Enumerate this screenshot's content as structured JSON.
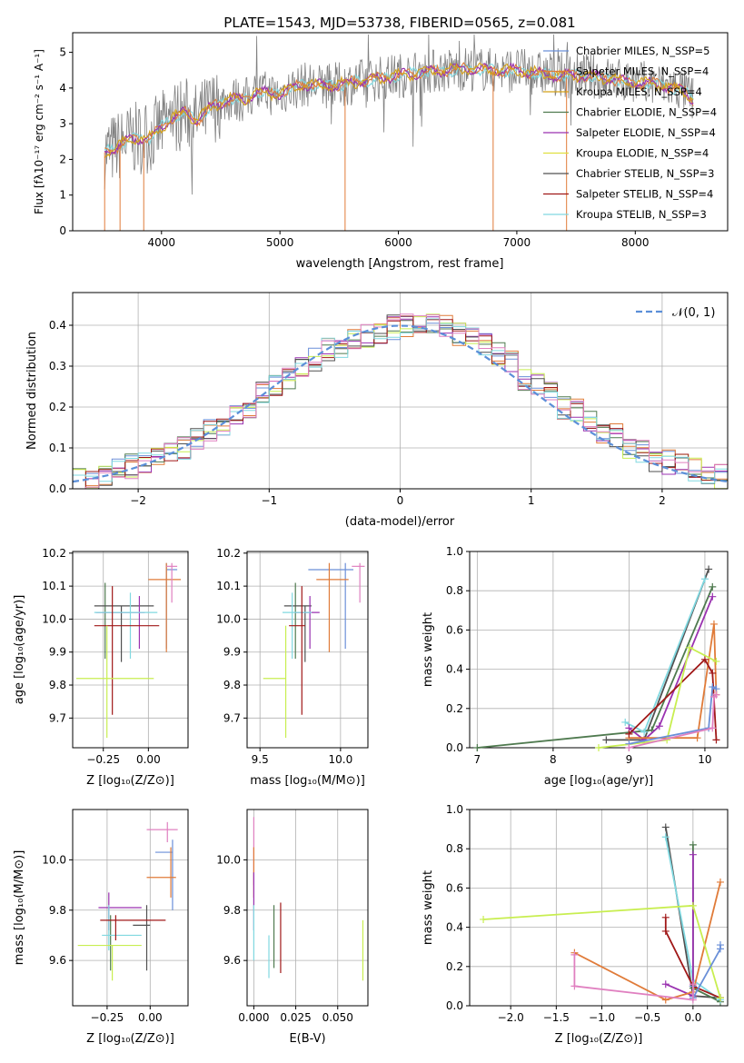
{
  "figure": {
    "title": "PLATE=1543, MJD=53738, FIBERID=0565, z=0.081"
  },
  "colors": {
    "Chabrier MILES": "#6a8fd8",
    "Salpeter MILES": "#e07b39",
    "Kroupa MILES": "#d4a017",
    "Chabrier ELODIE": "#4f7a4f",
    "Salpeter ELODIE": "#9a32b0",
    "Kroupa ELODIE": "#e0e040",
    "Chabrier STELIB": "#505050",
    "Salpeter STELIB": "#a01818",
    "Kroupa STELIB": "#80d8e0",
    "Kroupa ELODIE-bright": "#c8ee50",
    "pink": "#e080c0",
    "normal": "#5b8fd8"
  },
  "chart_data": [
    {
      "type": "line",
      "xlabel": "wavelength [Angstrom, rest frame]",
      "ylabel": "Flux [fλ10⁻¹⁷ erg cm⁻² s⁻¹ A⁻¹]",
      "xlim": [
        3250,
        8780
      ],
      "ylim": [
        0,
        5.55
      ],
      "xticks": [
        "4000",
        "5000",
        "6000",
        "7000",
        "8000"
      ],
      "yticks": [
        "0",
        "1",
        "2",
        "3",
        "4",
        "5"
      ],
      "legend": [
        "Chabrier MILES, N_SSP=5",
        "Salpeter MILES, N_SSP=4",
        "Kroupa MILES, N_SSP=4",
        "Chabrier ELODIE, N_SSP=4",
        "Salpeter ELODIE, N_SSP=4",
        "Kroupa ELODIE, N_SSP=4",
        "Chabrier STELIB, N_SSP=3",
        "Salpeter STELIB, N_SSP=4",
        "Kroupa STELIB, N_SSP=3"
      ],
      "legend_placement": "right",
      "continuum": {
        "x": [
          3520,
          3600,
          3700,
          3800,
          3900,
          4000,
          4100,
          4200,
          4300,
          4400,
          4500,
          4600,
          4700,
          4800,
          4900,
          5000,
          5200,
          5400,
          5600,
          5800,
          6000,
          6200,
          6400,
          6600,
          6800,
          7000,
          7200,
          7400,
          7600,
          7800,
          8000,
          8200,
          8400,
          8500
        ],
        "y": [
          2.2,
          2.3,
          2.5,
          2.6,
          2.6,
          2.9,
          3.2,
          3.3,
          3.1,
          3.4,
          3.6,
          3.7,
          3.65,
          3.9,
          3.85,
          3.85,
          4.1,
          4.05,
          4.15,
          4.25,
          4.35,
          4.45,
          4.5,
          4.55,
          4.5,
          4.5,
          4.4,
          4.35,
          4.35,
          4.25,
          4.15,
          4.1,
          3.95,
          3.65
        ]
      }
    },
    {
      "type": "bar",
      "xlabel": "(data-model)/error",
      "ylabel": "Normed distribution",
      "xlim": [
        -2.5,
        2.5
      ],
      "ylim": [
        0,
        0.48
      ],
      "xticks": [
        "−2",
        "−1",
        "0",
        "1",
        "2"
      ],
      "yticks": [
        "0.0",
        "0.1",
        "0.2",
        "0.3",
        "0.4"
      ],
      "legend": [
        "𝒩(0, 1)"
      ],
      "legend_placement": "top-right",
      "bin_width": 0.1,
      "histogram_profile": [
        0.02,
        0.025,
        0.03,
        0.035,
        0.045,
        0.05,
        0.055,
        0.06,
        0.07,
        0.085,
        0.09,
        0.1,
        0.11,
        0.125,
        0.14,
        0.15,
        0.17,
        0.185,
        0.2,
        0.215,
        0.235,
        0.25,
        0.27,
        0.28,
        0.3,
        0.315,
        0.33,
        0.34,
        0.35,
        0.36,
        0.37,
        0.375,
        0.38,
        0.39,
        0.395,
        0.4,
        0.41,
        0.41,
        0.405,
        0.4,
        0.39,
        0.38,
        0.37,
        0.355,
        0.34,
        0.33,
        0.31,
        0.29,
        0.27,
        0.26,
        0.24,
        0.22,
        0.2,
        0.19,
        0.17,
        0.16,
        0.14,
        0.13,
        0.11,
        0.1,
        0.09,
        0.08,
        0.07,
        0.065,
        0.055,
        0.05,
        0.045,
        0.04,
        0.035,
        0.03
      ]
    },
    {
      "type": "scatter",
      "xlabel": "Z [log₁₀(Z/Z⊙)]",
      "ylabel": "age  [log₁₀(age/yr)]",
      "xlim": [
        -0.42,
        0.22
      ],
      "ylim": [
        9.61,
        10.205
      ],
      "xticks": [
        "−0.25",
        "0.00"
      ],
      "yticks": [
        "9.7",
        "9.8",
        "9.9",
        "10.0",
        "10.1",
        "10.2"
      ]
    },
    {
      "type": "scatter",
      "xlabel": "mass [log₁₀(M/M⊙)]",
      "ylabel": "",
      "xlim": [
        9.42,
        10.17
      ],
      "ylim": [
        9.61,
        10.205
      ],
      "xticks": [
        "9.5",
        "10.0"
      ],
      "yticks": [
        "9.7",
        "9.8",
        "9.9",
        "10.0",
        "10.1",
        "10.2"
      ]
    },
    {
      "type": "line",
      "xlabel": "age  [log₁₀(age/yr)]",
      "ylabel": "mass weight",
      "xlim": [
        6.9,
        10.3
      ],
      "ylim": [
        0,
        1.0
      ],
      "xticks": [
        "7",
        "8",
        "9",
        "10"
      ],
      "yticks": [
        "0.0",
        "0.2",
        "0.4",
        "0.6",
        "0.8",
        "1.0"
      ]
    },
    {
      "type": "scatter",
      "xlabel": "Z [log₁₀(Z/Z⊙)]",
      "ylabel": "mass [log₁₀(M/M⊙)]",
      "xlim": [
        -0.45,
        0.22
      ],
      "ylim": [
        9.42,
        10.2
      ],
      "xticks": [
        "−0.25",
        "0.00"
      ],
      "yticks": [
        "9.6",
        "9.8",
        "10.0"
      ]
    },
    {
      "type": "scatter",
      "xlabel": "E(B-V)",
      "ylabel": "",
      "xlim": [
        -0.004,
        0.068
      ],
      "ylim": [
        9.42,
        10.2
      ],
      "xticks": [
        "0.000",
        "0.025",
        "0.050"
      ],
      "yticks": [
        "9.6",
        "9.8",
        "10.0"
      ]
    },
    {
      "type": "line",
      "xlabel": "Z [log₁₀(Z/Z⊙)]",
      "ylabel": "mass weight",
      "xlim": [
        -2.45,
        0.38
      ],
      "ylim": [
        0,
        1.0
      ],
      "xticks": [
        "−2.0",
        "−1.5",
        "−1.0",
        "−0.5",
        "0.0"
      ],
      "yticks": [
        "0.0",
        "0.2",
        "0.4",
        "0.6",
        "0.8",
        "1.0"
      ]
    }
  ],
  "errbars_zage": [
    {
      "c": "#4f7a4f",
      "x": -0.24,
      "xe": [
        -0.24,
        -0.24
      ],
      "y": 10.04,
      "ye": [
        9.88,
        10.11
      ]
    },
    {
      "c": "#505050",
      "x": -0.15,
      "xe": [
        -0.3,
        0.03
      ],
      "y": 10.04,
      "ye": [
        9.87,
        10.04
      ]
    },
    {
      "c": "#6a8fd8",
      "x": 0.1,
      "xe": [
        0.1,
        0.16
      ],
      "y": 10.15,
      "ye": [
        9.91,
        10.17
      ]
    },
    {
      "c": "#e07b39",
      "x": 0.1,
      "xe": [
        0.0,
        0.18
      ],
      "y": 10.12,
      "ye": [
        9.9,
        10.17
      ]
    },
    {
      "c": "#e080c0",
      "x": 0.13,
      "xe": [
        0.1,
        0.16
      ],
      "y": 10.16,
      "ye": [
        10.05,
        10.17
      ]
    },
    {
      "c": "#9a32b0",
      "x": -0.05,
      "xe": [
        -0.29,
        -0.02
      ],
      "y": 10.02,
      "ye": [
        9.91,
        10.07
      ]
    },
    {
      "c": "#80d8e0",
      "x": -0.1,
      "xe": [
        -0.3,
        0.05
      ],
      "y": 10.02,
      "ye": [
        9.88,
        10.08
      ]
    },
    {
      "c": "#a01818",
      "x": -0.2,
      "xe": [
        -0.3,
        0.06
      ],
      "y": 9.98,
      "ye": [
        9.71,
        10.1
      ]
    },
    {
      "c": "#c8ee50",
      "x": -0.23,
      "xe": [
        -0.4,
        0.03
      ],
      "y": 9.82,
      "ye": [
        9.64,
        9.98
      ]
    }
  ],
  "errbars_massage": [
    {
      "c": "#4f7a4f",
      "x": 9.72,
      "xe": [
        9.72,
        9.72
      ],
      "y": 10.04,
      "ye": [
        9.88,
        10.11
      ]
    },
    {
      "c": "#505050",
      "x": 9.78,
      "xe": [
        9.65,
        9.82
      ],
      "y": 10.04,
      "ye": [
        9.87,
        10.04
      ]
    },
    {
      "c": "#6a8fd8",
      "x": 10.03,
      "xe": [
        9.8,
        10.08
      ],
      "y": 10.15,
      "ye": [
        9.91,
        10.17
      ]
    },
    {
      "c": "#e07b39",
      "x": 9.93,
      "xe": [
        9.85,
        10.05
      ],
      "y": 10.12,
      "ye": [
        9.9,
        10.17
      ]
    },
    {
      "c": "#e080c0",
      "x": 10.12,
      "xe": [
        10.07,
        10.15
      ],
      "y": 10.16,
      "ye": [
        10.05,
        10.17
      ]
    },
    {
      "c": "#9a32b0",
      "x": 9.81,
      "xe": [
        9.72,
        9.87
      ],
      "y": 10.02,
      "ye": [
        9.91,
        10.07
      ]
    },
    {
      "c": "#80d8e0",
      "x": 9.7,
      "xe": [
        9.64,
        9.82
      ],
      "y": 10.02,
      "ye": [
        9.88,
        10.08
      ]
    },
    {
      "c": "#a01818",
      "x": 9.76,
      "xe": [
        9.68,
        9.78
      ],
      "y": 9.98,
      "ye": [
        9.71,
        10.1
      ]
    },
    {
      "c": "#c8ee50",
      "x": 9.66,
      "xe": [
        9.52,
        9.66
      ],
      "y": 9.82,
      "ye": [
        9.64,
        9.98
      ]
    }
  ],
  "errbars_zmass": [
    {
      "c": "#4f7a4f",
      "x": -0.23,
      "xe": [
        -0.23,
        -0.23
      ],
      "y": 9.73,
      "ye": [
        9.56,
        9.78
      ]
    },
    {
      "c": "#505050",
      "x": -0.02,
      "xe": [
        -0.1,
        0.0
      ],
      "y": 9.74,
      "ye": [
        9.56,
        9.82
      ]
    },
    {
      "c": "#6a8fd8",
      "x": 0.13,
      "xe": [
        0.03,
        0.13
      ],
      "y": 10.03,
      "ye": [
        9.8,
        10.08
      ]
    },
    {
      "c": "#e07b39",
      "x": 0.12,
      "xe": [
        -0.02,
        0.15
      ],
      "y": 9.93,
      "ye": [
        9.85,
        10.05
      ]
    },
    {
      "c": "#e080c0",
      "x": 0.1,
      "xe": [
        -0.02,
        0.16
      ],
      "y": 10.12,
      "ye": [
        10.07,
        10.15
      ]
    },
    {
      "c": "#9a32b0",
      "x": -0.24,
      "xe": [
        -0.3,
        -0.05
      ],
      "y": 9.81,
      "ye": [
        9.72,
        9.87
      ]
    },
    {
      "c": "#80d8e0",
      "x": -0.24,
      "xe": [
        -0.28,
        -0.05
      ],
      "y": 9.7,
      "ye": [
        9.64,
        9.82
      ]
    },
    {
      "c": "#a01818",
      "x": -0.2,
      "xe": [
        -0.29,
        0.09
      ],
      "y": 9.76,
      "ye": [
        9.68,
        9.78
      ]
    },
    {
      "c": "#c8ee50",
      "x": -0.22,
      "xe": [
        -0.42,
        -0.05
      ],
      "y": 9.66,
      "ye": [
        9.52,
        9.66
      ]
    }
  ],
  "errbars_ebvmass": [
    {
      "c": "#e080c0",
      "x": 0.0,
      "y": 10.05,
      "ye": [
        9.9,
        10.17
      ]
    },
    {
      "c": "#e07b39",
      "x": 0.0,
      "y": 9.93,
      "ye": [
        9.85,
        10.05
      ]
    },
    {
      "c": "#9a32b0",
      "x": 0.0,
      "y": 9.81,
      "ye": [
        9.72,
        9.95
      ]
    },
    {
      "c": "#80d8e0",
      "x": 0.0,
      "y": 9.7,
      "ye": [
        9.6,
        9.82
      ]
    },
    {
      "c": "#80d8e0",
      "x": 0.009,
      "y": 9.6,
      "ye": [
        9.53,
        9.7
      ]
    },
    {
      "c": "#4f7a4f",
      "x": 0.012,
      "y": 9.7,
      "ye": [
        9.57,
        9.82
      ]
    },
    {
      "c": "#a01818",
      "x": 0.016,
      "y": 9.7,
      "ye": [
        9.55,
        9.83
      ]
    },
    {
      "c": "#c8ee50",
      "x": 0.065,
      "y": 9.66,
      "ye": [
        9.52,
        9.76
      ]
    }
  ],
  "weights_age": [
    {
      "c": "#505050",
      "pts": [
        [
          8.7,
          0.04
        ],
        [
          9.2,
          0.04
        ],
        [
          10.05,
          0.91
        ]
      ]
    },
    {
      "c": "#4f7a4f",
      "pts": [
        [
          7.0,
          0.0
        ],
        [
          9.3,
          0.09
        ],
        [
          10.1,
          0.82
        ]
      ]
    },
    {
      "c": "#80d8e0",
      "pts": [
        [
          8.95,
          0.13
        ],
        [
          9.2,
          0.08
        ],
        [
          10.0,
          0.86
        ]
      ]
    },
    {
      "c": "#9a32b0",
      "pts": [
        [
          9.0,
          0.1
        ],
        [
          9.2,
          0.04
        ],
        [
          9.4,
          0.11
        ],
        [
          10.1,
          0.77
        ]
      ]
    },
    {
      "c": "#e07b39",
      "pts": [
        [
          9.0,
          0.05
        ],
        [
          9.9,
          0.05
        ],
        [
          10.12,
          0.63
        ],
        [
          10.15,
          0.27
        ]
      ]
    },
    {
      "c": "#a01818",
      "pts": [
        [
          9.0,
          0.07
        ],
        [
          10.0,
          0.45
        ],
        [
          10.1,
          0.38
        ],
        [
          10.15,
          0.04
        ]
      ]
    },
    {
      "c": "#c8ee50",
      "pts": [
        [
          8.6,
          0.0
        ],
        [
          9.5,
          0.04
        ],
        [
          9.8,
          0.51
        ],
        [
          10.15,
          0.44
        ]
      ]
    },
    {
      "c": "#6a8fd8",
      "pts": [
        [
          9.0,
          0.02
        ],
        [
          10.05,
          0.1
        ],
        [
          10.1,
          0.31
        ],
        [
          10.15,
          0.3
        ]
      ]
    },
    {
      "c": "#e080c0",
      "pts": [
        [
          9.0,
          0.0
        ],
        [
          10.1,
          0.1
        ],
        [
          10.12,
          0.26
        ],
        [
          10.15,
          0.27
        ]
      ]
    }
  ],
  "weights_z": [
    {
      "c": "#505050",
      "pts": [
        [
          -0.3,
          0.91
        ],
        [
          0.0,
          0.05
        ],
        [
          0.3,
          0.04
        ]
      ]
    },
    {
      "c": "#4f7a4f",
      "pts": [
        [
          0.0,
          0.82
        ],
        [
          0.0,
          0.09
        ],
        [
          0.3,
          0.02
        ]
      ]
    },
    {
      "c": "#80d8e0",
      "pts": [
        [
          -0.3,
          0.86
        ],
        [
          0.0,
          0.13
        ],
        [
          0.3,
          0.03
        ]
      ]
    },
    {
      "c": "#9a32b0",
      "pts": [
        [
          0.0,
          0.77
        ],
        [
          0.0,
          0.05
        ],
        [
          -0.3,
          0.11
        ]
      ]
    },
    {
      "c": "#e07b39",
      "pts": [
        [
          -1.3,
          0.27
        ],
        [
          -0.3,
          0.03
        ],
        [
          0.0,
          0.07
        ],
        [
          0.3,
          0.63
        ]
      ]
    },
    {
      "c": "#a01818",
      "pts": [
        [
          -0.3,
          0.45
        ],
        [
          -0.3,
          0.38
        ],
        [
          0.0,
          0.1
        ],
        [
          0.3,
          0.04
        ]
      ]
    },
    {
      "c": "#c8ee50",
      "pts": [
        [
          -2.3,
          0.44
        ],
        [
          0.0,
          0.51
        ],
        [
          0.3,
          0.04
        ]
      ]
    },
    {
      "c": "#6a8fd8",
      "pts": [
        [
          0.3,
          0.31
        ],
        [
          0.3,
          0.29
        ],
        [
          0.0,
          0.04
        ],
        [
          0.0,
          0.1
        ]
      ]
    },
    {
      "c": "#e080c0",
      "pts": [
        [
          -1.3,
          0.26
        ],
        [
          -1.3,
          0.1
        ],
        [
          0.0,
          0.03
        ],
        [
          0.0,
          0.11
        ]
      ]
    }
  ]
}
